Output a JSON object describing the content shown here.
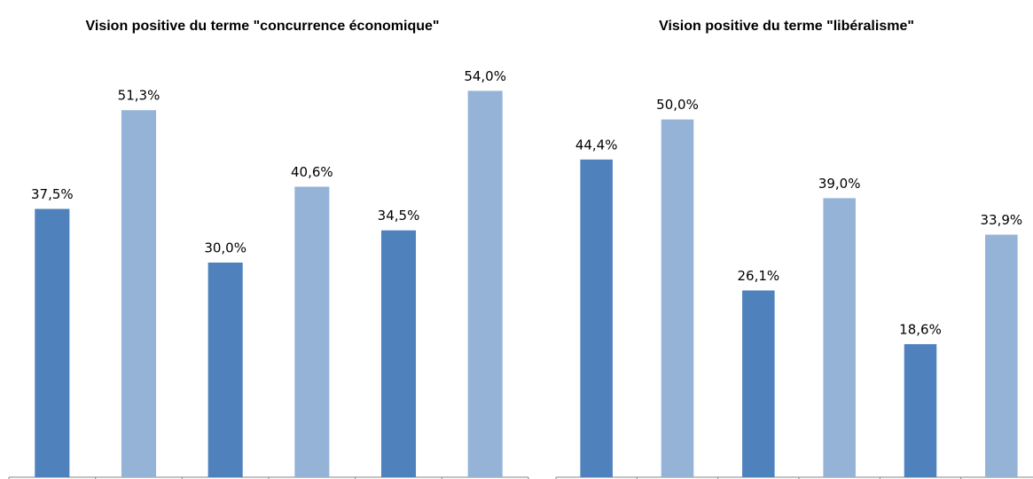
{
  "chart_data": [
    {
      "type": "bar",
      "title": "Vision positive du terme \"concurrence économique\"",
      "categories": [
        null,
        null,
        null,
        null,
        null,
        null
      ],
      "values": [
        37.5,
        51.3,
        30.0,
        40.6,
        34.5,
        54.0
      ],
      "value_labels": [
        "37,5%",
        "51,3%",
        "30,0%",
        "40,6%",
        "34,5%",
        "54,0%"
      ],
      "colors": [
        "#4f81bd",
        "#95b3d7",
        "#4f81bd",
        "#95b3d7",
        "#4f81bd",
        "#95b3d7"
      ],
      "ylim": [
        0,
        60
      ]
    },
    {
      "type": "bar",
      "title": "Vision positive du terme \"libéralisme\"",
      "categories": [
        null,
        null,
        null,
        null,
        null,
        null
      ],
      "values": [
        44.4,
        50.0,
        26.1,
        39.0,
        18.6,
        33.9
      ],
      "value_labels": [
        "44,4%",
        "50,0%",
        "26,1%",
        "39,0%",
        "18,6%",
        "33,9%"
      ],
      "colors": [
        "#4f81bd",
        "#95b3d7",
        "#4f81bd",
        "#95b3d7",
        "#4f81bd",
        "#95b3d7"
      ],
      "ylim": [
        0,
        60
      ]
    }
  ]
}
